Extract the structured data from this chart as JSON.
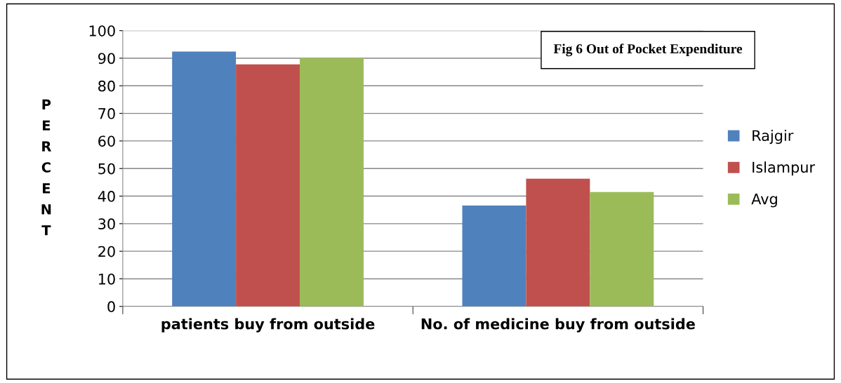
{
  "chart_data": {
    "type": "bar",
    "title": "Fig 6 Out of Pocket Expenditure",
    "ylabel": "PERCENT",
    "categories": [
      "patients buy from outside",
      "No. of medicine buy from outside"
    ],
    "series": [
      {
        "name": "Rajgir",
        "color": "#4f81bd",
        "values": [
          92.4,
          36.6
        ]
      },
      {
        "name": "Islampur",
        "color": "#c0504d",
        "values": [
          87.8,
          46.3
        ]
      },
      {
        "name": "Avg",
        "color": "#9bbb59",
        "values": [
          90.1,
          41.5
        ]
      }
    ],
    "ylim": [
      0,
      100
    ],
    "yticks": [
      0,
      10,
      20,
      30,
      40,
      50,
      60,
      70,
      80,
      90,
      100
    ],
    "grid": "y",
    "legend": "right"
  }
}
